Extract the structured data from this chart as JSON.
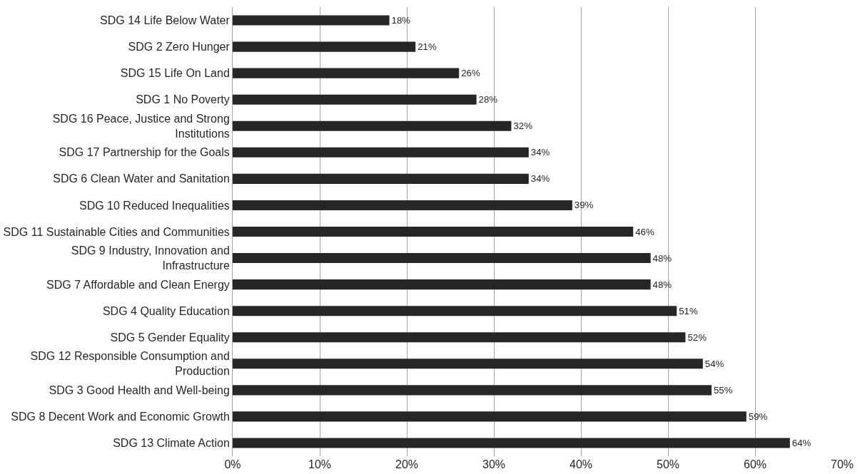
{
  "chart_data": {
    "type": "bar",
    "orientation": "horizontal",
    "categories": [
      "SDG 14 Life Below Water",
      "SDG 2 Zero Hunger",
      "SDG 15 Life On Land",
      "SDG 1 No Poverty",
      "SDG 16 Peace, Justice and Strong Institutions",
      "SDG 17 Partnership for the Goals",
      "SDG 6 Clean Water and Sanitation",
      "SDG 10 Reduced Inequalities",
      "SDG 11 Sustainable Cities and Communities",
      "SDG 9 Industry, Innovation and Infrastructure",
      "SDG 7 Affordable and Clean Energy",
      "SDG 4 Quality Education",
      "SDG 5 Gender Equality",
      "SDG 12 Responsible Consumption and Production",
      "SDG 3 Good Health and Well-being",
      "SDG 8 Decent Work and Economic Growth",
      "SDG 13 Climate Action"
    ],
    "values": [
      18,
      21,
      26,
      28,
      32,
      34,
      34,
      39,
      46,
      48,
      48,
      51,
      52,
      54,
      55,
      59,
      64
    ],
    "value_labels": [
      "18%",
      "21%",
      "26%",
      "28%",
      "32%",
      "34%",
      "34%",
      "39%",
      "46%",
      "48%",
      "48%",
      "51%",
      "52%",
      "54%",
      "55%",
      "59%",
      "64%"
    ],
    "color": "#262626",
    "xlim": [
      0,
      70
    ],
    "xticks": [
      {
        "value": 0,
        "label": "0%"
      },
      {
        "value": 10,
        "label": "10%"
      },
      {
        "value": 20,
        "label": "20%"
      },
      {
        "value": 30,
        "label": "30%"
      },
      {
        "value": 40,
        "label": "40%"
      },
      {
        "value": 50,
        "label": "50%"
      },
      {
        "value": 60,
        "label": "60%"
      },
      {
        "value": 70,
        "label": "70%"
      }
    ],
    "grid": "x",
    "legend": false
  }
}
